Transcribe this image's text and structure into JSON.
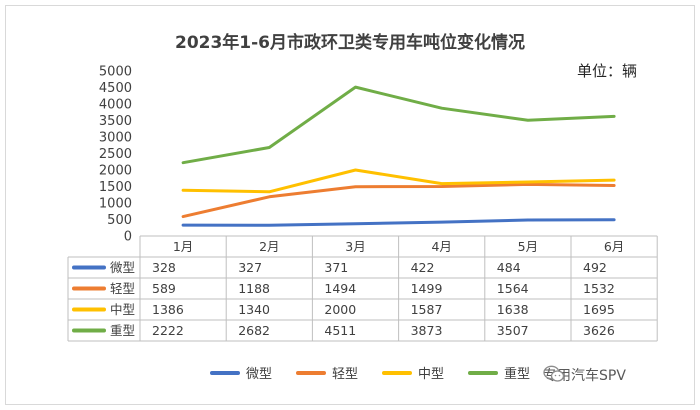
{
  "title": "2023年1-6月市政环卫类专用车吨位变化情况",
  "unit_label": "单位：辆",
  "watermark": "专用汽车SPV",
  "chart_data": {
    "type": "line",
    "title": "2023年1-6月市政环卫类专用车吨位变化情况",
    "categories": [
      "1月",
      "2月",
      "3月",
      "4月",
      "5月",
      "6月"
    ],
    "ylim": [
      0,
      5000
    ],
    "yticks": [
      "0",
      "500",
      "1000",
      "1500",
      "2000",
      "2500",
      "3000",
      "3500",
      "4000",
      "4500",
      "5000"
    ],
    "legend_position": "bottom",
    "series": [
      {
        "name": "微型",
        "color": "#4472c4",
        "values": [
          328,
          327,
          371,
          422,
          484,
          492
        ]
      },
      {
        "name": "轻型",
        "color": "#ed7d31",
        "values": [
          589,
          1188,
          1494,
          1499,
          1564,
          1532
        ]
      },
      {
        "name": "中型",
        "color": "#ffc000",
        "values": [
          1386,
          1340,
          2000,
          1587,
          1638,
          1695
        ]
      },
      {
        "name": "重型",
        "color": "#70ad47",
        "values": [
          2222,
          2682,
          4511,
          3873,
          3507,
          3626
        ]
      }
    ]
  }
}
